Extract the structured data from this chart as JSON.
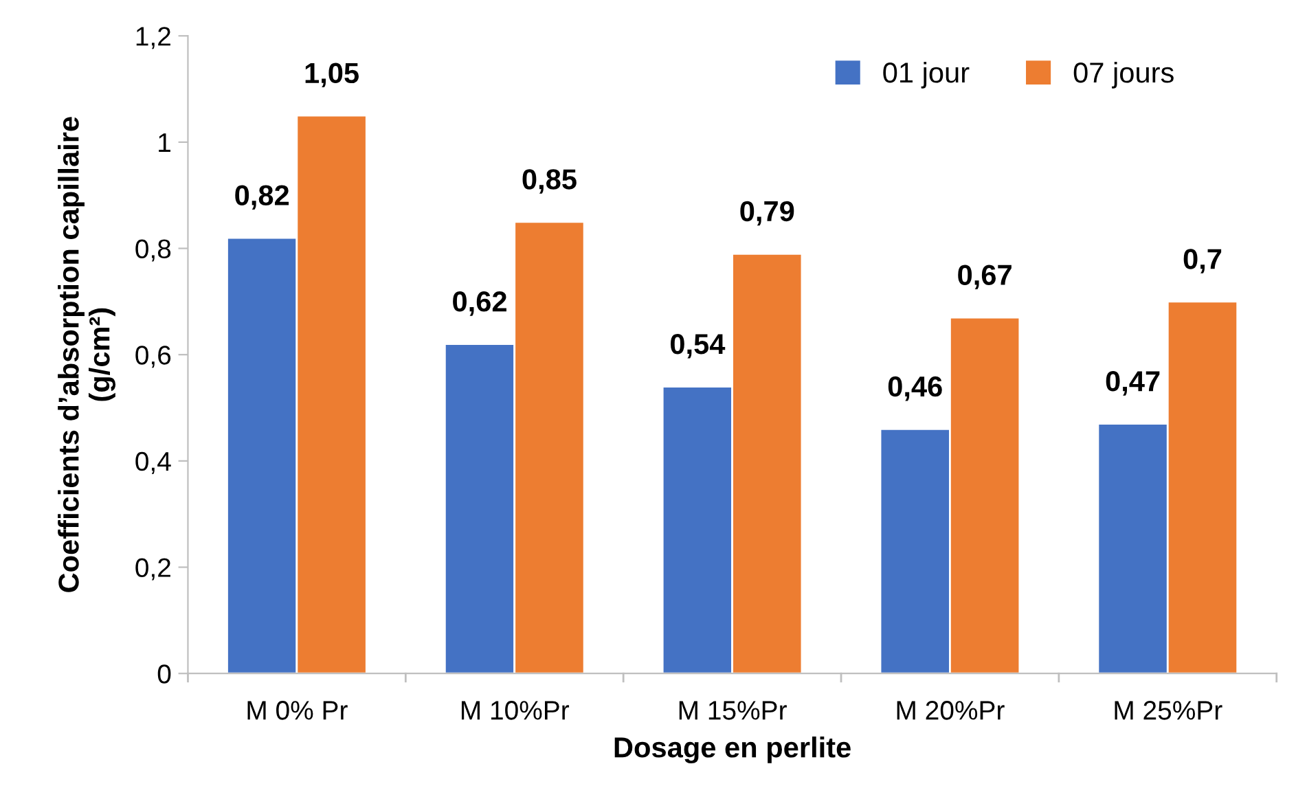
{
  "chart_data": {
    "type": "bar",
    "xlabel": "Dosage en perlite",
    "ylabel": "Coefficients d’absorption capillaire\n(g/cm²)",
    "categories": [
      "M 0% Pr",
      "M 10%Pr",
      "M 15%Pr",
      "M 20%Pr",
      "M 25%Pr"
    ],
    "series": [
      {
        "name": "01 jour",
        "color": "#4472c4",
        "values": [
          0.82,
          0.62,
          0.54,
          0.46,
          0.47
        ],
        "value_labels": [
          "0,82",
          "0,62",
          "0,54",
          "0,46",
          "0,47"
        ]
      },
      {
        "name": "07 jours",
        "color": "#ed7d31",
        "values": [
          1.05,
          0.85,
          0.79,
          0.67,
          0.7
        ],
        "value_labels": [
          "1,05",
          "0,85",
          "0,79",
          "0,67",
          "0,7"
        ]
      }
    ],
    "ylim": [
      0,
      1.2
    ],
    "yticks": [
      0,
      {
        "value": 0.2,
        "label": "0,2"
      },
      {
        "value": 0.4,
        "label": "0,4"
      },
      {
        "value": 0.6,
        "label": "0,6"
      },
      {
        "value": 0.8,
        "label": "0,8"
      },
      1,
      {
        "value": 1.2,
        "label": "1,2"
      }
    ],
    "grid": false,
    "legend": "top right"
  }
}
